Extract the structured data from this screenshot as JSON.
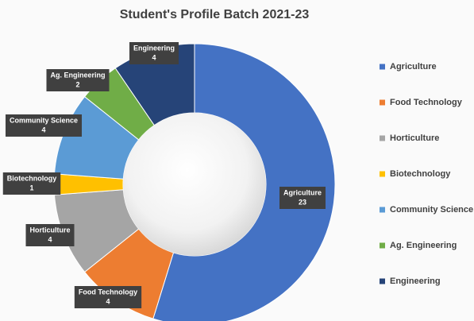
{
  "chart_data": {
    "type": "doughnut",
    "title": "Student's Profile Batch 2021-23",
    "categories": [
      "Agriculture",
      "Food Technology",
      "Horticulture",
      "Biotechnology",
      "Community Science",
      "Ag. Engineering",
      "Engineering"
    ],
    "values": [
      23,
      4,
      4,
      1,
      4,
      2,
      4
    ],
    "colors": [
      "#4472c4",
      "#ed7d31",
      "#a5a5a5",
      "#ffc000",
      "#5b9bd5",
      "#70ad47",
      "#264478"
    ],
    "legend": "right"
  }
}
